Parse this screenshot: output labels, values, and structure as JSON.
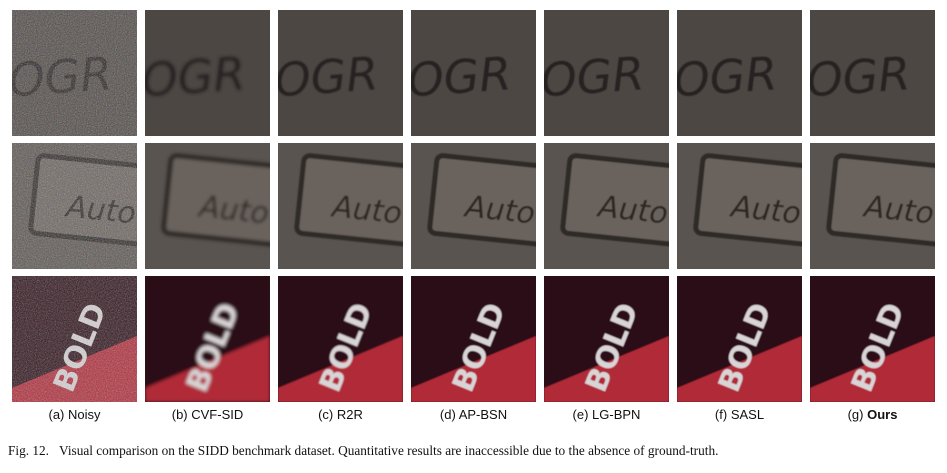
{
  "figure": {
    "columns": [
      {
        "prefix": "(a)",
        "name": "Noisy",
        "bold": false
      },
      {
        "prefix": "(b)",
        "name": "CVF-SID",
        "bold": false
      },
      {
        "prefix": "(c)",
        "name": "R2R",
        "bold": false
      },
      {
        "prefix": "(d)",
        "name": "AP-BSN",
        "bold": false
      },
      {
        "prefix": "(e)",
        "name": "LG-BPN",
        "bold": false
      },
      {
        "prefix": "(f)",
        "name": "SASL",
        "bold": false
      },
      {
        "prefix": "(g)",
        "name": "Ours",
        "bold": true
      }
    ],
    "rows": [
      {
        "patch_text": "OGR",
        "bg": "#4d4744",
        "text_color": "#272221"
      },
      {
        "patch_text": "Auto",
        "bg": "#5a5450",
        "text_color": "#2b2624"
      },
      {
        "patch_text": "BOLD",
        "bg": "#2c0f18",
        "text_color": "#d9d4d6"
      }
    ],
    "caption_label": "Fig. 12.",
    "caption_text": "Visual comparison on the SIDD benchmark dataset. Quantitative results are inaccessible due to the absence of ground-truth."
  }
}
